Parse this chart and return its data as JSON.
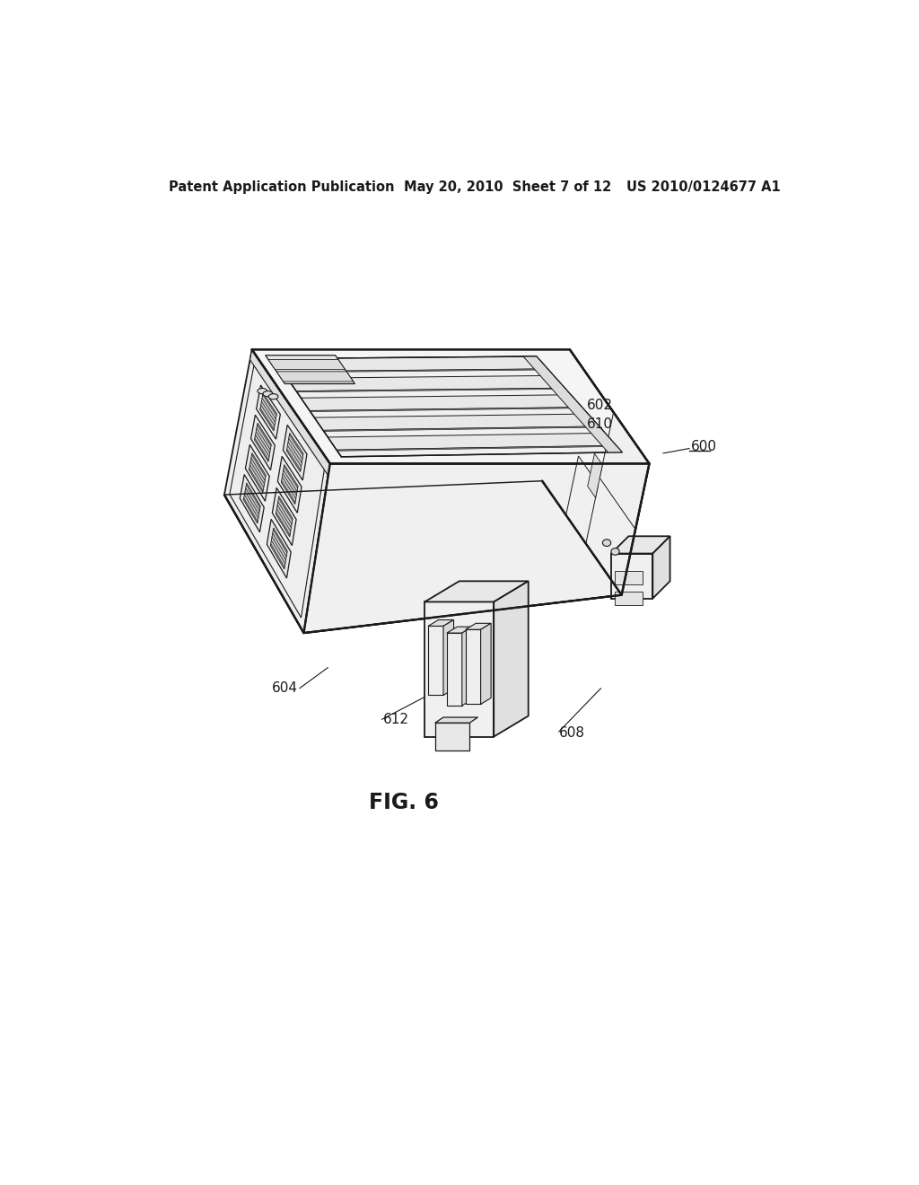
{
  "background_color": "#ffffff",
  "header_left": "Patent Application Publication",
  "header_center": "May 20, 2010  Sheet 7 of 12",
  "header_right": "US 2010/0124677 A1",
  "figure_label": "FIG. 6",
  "line_color": "#1a1a1a",
  "line_width": 1.3,
  "header_fontsize": 10.5,
  "fig_label_fontsize": 17,
  "ref_fontsize": 11
}
